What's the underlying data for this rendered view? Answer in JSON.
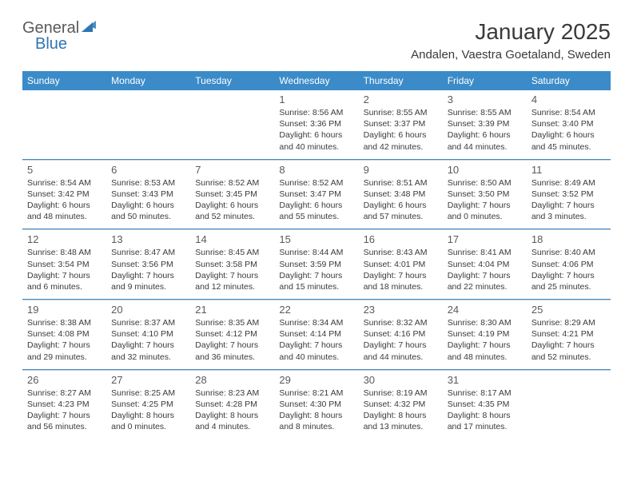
{
  "brand": {
    "text1": "General",
    "text2": "Blue",
    "text1_color": "#5a5a5a",
    "text2_color": "#2e75b6",
    "icon_color": "#2e75b6"
  },
  "title": "January 2025",
  "location": "Andalen, Vaestra Goetaland, Sweden",
  "colors": {
    "header_bg": "#3b8bc9",
    "header_text": "#ffffff",
    "week_divider": "#3b8bc9",
    "cell_border": "#d0d0d0",
    "text": "#3a3a3a",
    "daynum": "#5a5a5a",
    "background": "#ffffff"
  },
  "typography": {
    "title_fontsize": 28,
    "location_fontsize": 15,
    "dayheader_fontsize": 12,
    "daynum_fontsize": 13,
    "dayinfo_fontsize": 10.5
  },
  "day_headers": [
    "Sunday",
    "Monday",
    "Tuesday",
    "Wednesday",
    "Thursday",
    "Friday",
    "Saturday"
  ],
  "weeks": [
    [
      {
        "n": "",
        "sr": "",
        "ss": "",
        "dl": ""
      },
      {
        "n": "",
        "sr": "",
        "ss": "",
        "dl": ""
      },
      {
        "n": "",
        "sr": "",
        "ss": "",
        "dl": ""
      },
      {
        "n": "1",
        "sr": "Sunrise: 8:56 AM",
        "ss": "Sunset: 3:36 PM",
        "dl": "Daylight: 6 hours and 40 minutes."
      },
      {
        "n": "2",
        "sr": "Sunrise: 8:55 AM",
        "ss": "Sunset: 3:37 PM",
        "dl": "Daylight: 6 hours and 42 minutes."
      },
      {
        "n": "3",
        "sr": "Sunrise: 8:55 AM",
        "ss": "Sunset: 3:39 PM",
        "dl": "Daylight: 6 hours and 44 minutes."
      },
      {
        "n": "4",
        "sr": "Sunrise: 8:54 AM",
        "ss": "Sunset: 3:40 PM",
        "dl": "Daylight: 6 hours and 45 minutes."
      }
    ],
    [
      {
        "n": "5",
        "sr": "Sunrise: 8:54 AM",
        "ss": "Sunset: 3:42 PM",
        "dl": "Daylight: 6 hours and 48 minutes."
      },
      {
        "n": "6",
        "sr": "Sunrise: 8:53 AM",
        "ss": "Sunset: 3:43 PM",
        "dl": "Daylight: 6 hours and 50 minutes."
      },
      {
        "n": "7",
        "sr": "Sunrise: 8:52 AM",
        "ss": "Sunset: 3:45 PM",
        "dl": "Daylight: 6 hours and 52 minutes."
      },
      {
        "n": "8",
        "sr": "Sunrise: 8:52 AM",
        "ss": "Sunset: 3:47 PM",
        "dl": "Daylight: 6 hours and 55 minutes."
      },
      {
        "n": "9",
        "sr": "Sunrise: 8:51 AM",
        "ss": "Sunset: 3:48 PM",
        "dl": "Daylight: 6 hours and 57 minutes."
      },
      {
        "n": "10",
        "sr": "Sunrise: 8:50 AM",
        "ss": "Sunset: 3:50 PM",
        "dl": "Daylight: 7 hours and 0 minutes."
      },
      {
        "n": "11",
        "sr": "Sunrise: 8:49 AM",
        "ss": "Sunset: 3:52 PM",
        "dl": "Daylight: 7 hours and 3 minutes."
      }
    ],
    [
      {
        "n": "12",
        "sr": "Sunrise: 8:48 AM",
        "ss": "Sunset: 3:54 PM",
        "dl": "Daylight: 7 hours and 6 minutes."
      },
      {
        "n": "13",
        "sr": "Sunrise: 8:47 AM",
        "ss": "Sunset: 3:56 PM",
        "dl": "Daylight: 7 hours and 9 minutes."
      },
      {
        "n": "14",
        "sr": "Sunrise: 8:45 AM",
        "ss": "Sunset: 3:58 PM",
        "dl": "Daylight: 7 hours and 12 minutes."
      },
      {
        "n": "15",
        "sr": "Sunrise: 8:44 AM",
        "ss": "Sunset: 3:59 PM",
        "dl": "Daylight: 7 hours and 15 minutes."
      },
      {
        "n": "16",
        "sr": "Sunrise: 8:43 AM",
        "ss": "Sunset: 4:01 PM",
        "dl": "Daylight: 7 hours and 18 minutes."
      },
      {
        "n": "17",
        "sr": "Sunrise: 8:41 AM",
        "ss": "Sunset: 4:04 PM",
        "dl": "Daylight: 7 hours and 22 minutes."
      },
      {
        "n": "18",
        "sr": "Sunrise: 8:40 AM",
        "ss": "Sunset: 4:06 PM",
        "dl": "Daylight: 7 hours and 25 minutes."
      }
    ],
    [
      {
        "n": "19",
        "sr": "Sunrise: 8:38 AM",
        "ss": "Sunset: 4:08 PM",
        "dl": "Daylight: 7 hours and 29 minutes."
      },
      {
        "n": "20",
        "sr": "Sunrise: 8:37 AM",
        "ss": "Sunset: 4:10 PM",
        "dl": "Daylight: 7 hours and 32 minutes."
      },
      {
        "n": "21",
        "sr": "Sunrise: 8:35 AM",
        "ss": "Sunset: 4:12 PM",
        "dl": "Daylight: 7 hours and 36 minutes."
      },
      {
        "n": "22",
        "sr": "Sunrise: 8:34 AM",
        "ss": "Sunset: 4:14 PM",
        "dl": "Daylight: 7 hours and 40 minutes."
      },
      {
        "n": "23",
        "sr": "Sunrise: 8:32 AM",
        "ss": "Sunset: 4:16 PM",
        "dl": "Daylight: 7 hours and 44 minutes."
      },
      {
        "n": "24",
        "sr": "Sunrise: 8:30 AM",
        "ss": "Sunset: 4:19 PM",
        "dl": "Daylight: 7 hours and 48 minutes."
      },
      {
        "n": "25",
        "sr": "Sunrise: 8:29 AM",
        "ss": "Sunset: 4:21 PM",
        "dl": "Daylight: 7 hours and 52 minutes."
      }
    ],
    [
      {
        "n": "26",
        "sr": "Sunrise: 8:27 AM",
        "ss": "Sunset: 4:23 PM",
        "dl": "Daylight: 7 hours and 56 minutes."
      },
      {
        "n": "27",
        "sr": "Sunrise: 8:25 AM",
        "ss": "Sunset: 4:25 PM",
        "dl": "Daylight: 8 hours and 0 minutes."
      },
      {
        "n": "28",
        "sr": "Sunrise: 8:23 AM",
        "ss": "Sunset: 4:28 PM",
        "dl": "Daylight: 8 hours and 4 minutes."
      },
      {
        "n": "29",
        "sr": "Sunrise: 8:21 AM",
        "ss": "Sunset: 4:30 PM",
        "dl": "Daylight: 8 hours and 8 minutes."
      },
      {
        "n": "30",
        "sr": "Sunrise: 8:19 AM",
        "ss": "Sunset: 4:32 PM",
        "dl": "Daylight: 8 hours and 13 minutes."
      },
      {
        "n": "31",
        "sr": "Sunrise: 8:17 AM",
        "ss": "Sunset: 4:35 PM",
        "dl": "Daylight: 8 hours and 17 minutes."
      },
      {
        "n": "",
        "sr": "",
        "ss": "",
        "dl": ""
      }
    ]
  ]
}
